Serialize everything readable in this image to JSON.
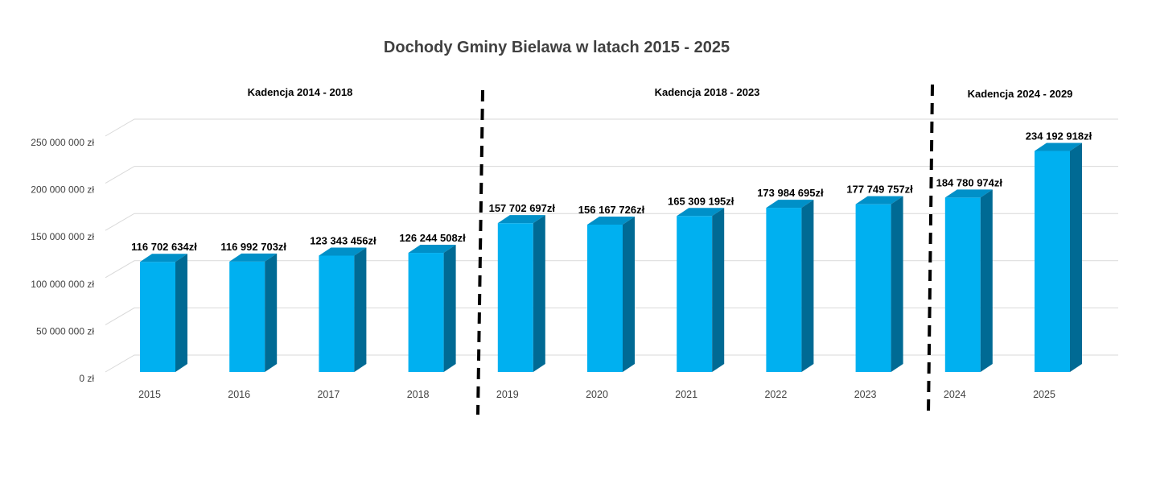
{
  "chart_data": {
    "type": "bar",
    "title": "Dochody Gminy Bielawa w latach 2015 - 2025",
    "categories": [
      "2015",
      "2016",
      "2017",
      "2018",
      "2019",
      "2020",
      "2021",
      "2022",
      "2023",
      "2024",
      "2025"
    ],
    "values": [
      116702634,
      116992703,
      123343456,
      126244508,
      157702697,
      156167726,
      165309195,
      173984695,
      177749757,
      184780974,
      234192918
    ],
    "data_labels": [
      "116 702 634zł",
      "116 992 703zł",
      "123 343 456zł",
      "126 244 508zł",
      "157 702 697zł",
      "156 167 726zł",
      "165 309 195zł",
      "173 984 695zł",
      "177 749 757zł",
      "184 780 974zł",
      "234 192 918zł"
    ],
    "yticks": [
      0,
      50000000,
      100000000,
      150000000,
      200000000,
      250000000
    ],
    "ytick_labels": [
      "0 zł",
      "50 000 000 zł",
      "100 000 000 zł",
      "150 000 000 zł",
      "200 000 000 zł",
      "250 000 000 zł"
    ],
    "ylim": [
      0,
      250000000
    ],
    "grid": true,
    "style": "3d-column",
    "colors": {
      "bar_front": "#00b0f0",
      "bar_top": "#0090c8",
      "bar_side": "#006a94",
      "grid": "#d9d9d9",
      "divider": "#000000"
    },
    "annotations": [
      {
        "label": "Kadencja 2014 - 2018",
        "from_category": "2015",
        "to_category": "2018"
      },
      {
        "label": "Kadencja 2018 - 2023",
        "from_category": "2019",
        "to_category": "2023"
      },
      {
        "label": "Kadencja 2024 - 2029",
        "from_category": "2024",
        "to_category": "2025"
      }
    ],
    "dividers": [
      {
        "between": [
          "2018",
          "2019"
        ],
        "style": "dashed"
      },
      {
        "between": [
          "2023",
          "2024"
        ],
        "style": "dashed"
      }
    ]
  }
}
